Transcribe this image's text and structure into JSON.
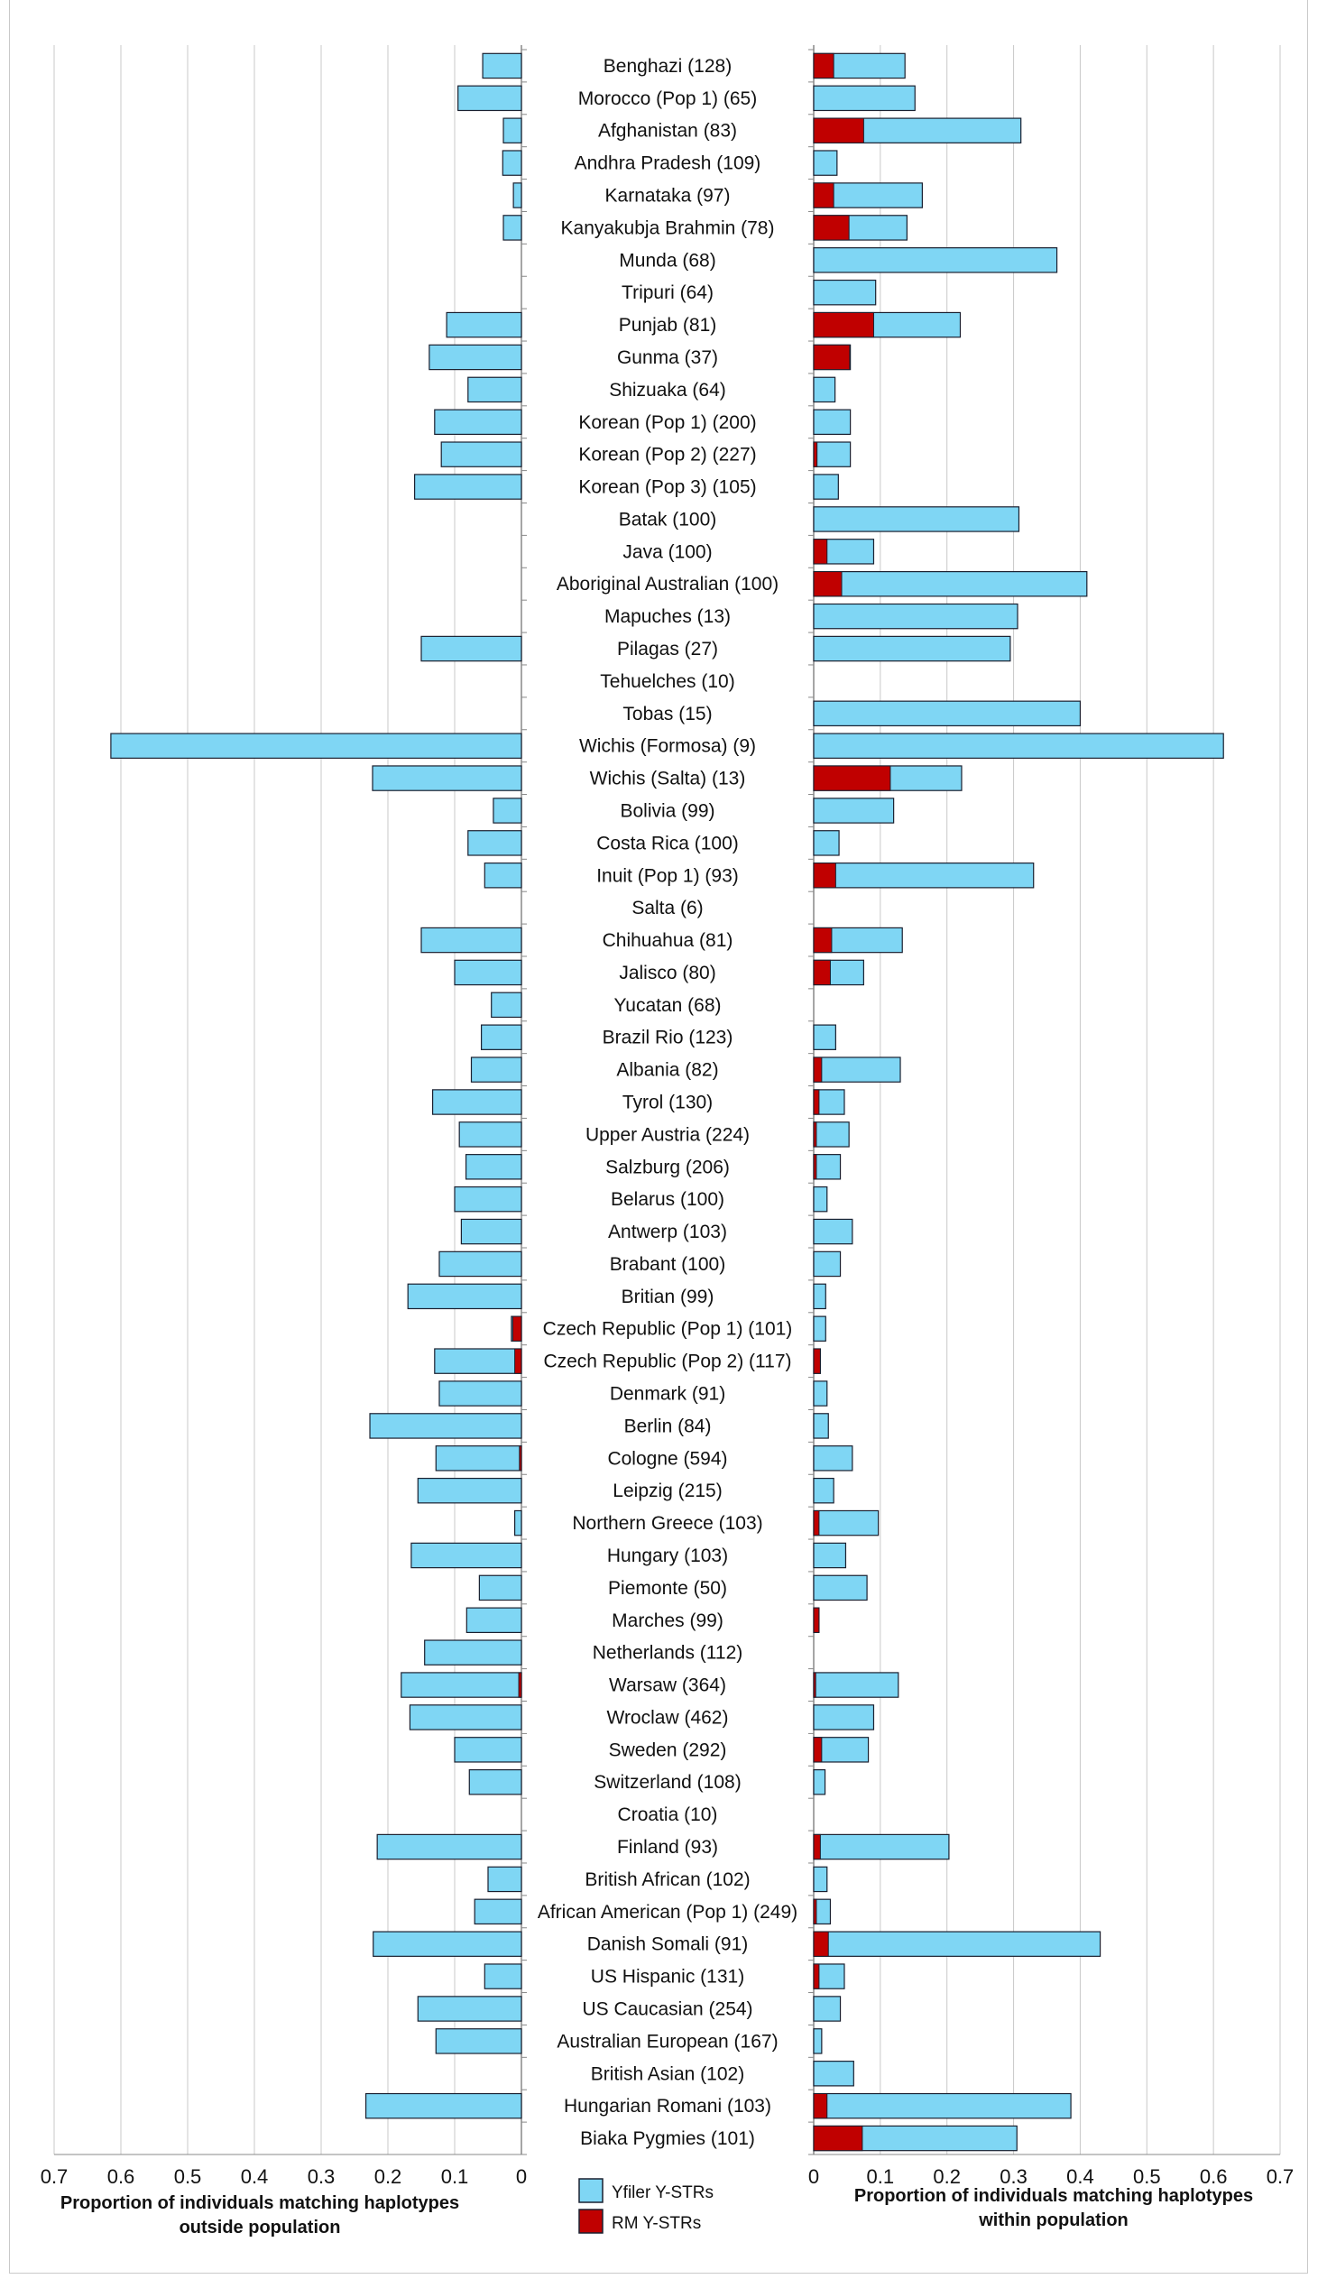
{
  "chart_data": {
    "type": "bar",
    "orientation": "horizontal",
    "layout": "back-to-back",
    "categories": [
      "Benghazi (128)",
      "Morocco (Pop 1) (65)",
      "Afghanistan (83)",
      "Andhra Pradesh (109)",
      "Karnataka (97)",
      "Kanyakubja Brahmin (78)",
      "Munda (68)",
      "Tripuri (64)",
      "Punjab (81)",
      "Gunma (37)",
      "Shizuaka (64)",
      "Korean (Pop 1) (200)",
      "Korean (Pop 2) (227)",
      "Korean (Pop 3) (105)",
      "Batak (100)",
      "Java (100)",
      "Aboriginal Australian (100)",
      "Mapuches (13)",
      "Pilagas (27)",
      "Tehuelches (10)",
      "Tobas (15)",
      "Wichis (Formosa) (9)",
      "Wichis (Salta) (13)",
      "Bolivia (99)",
      "Costa Rica (100)",
      "Inuit (Pop 1) (93)",
      "Salta (6)",
      "Chihuahua (81)",
      "Jalisco (80)",
      "Yucatan (68)",
      "Brazil Rio (123)",
      "Albania (82)",
      "Tyrol (130)",
      "Upper Austria (224)",
      "Salzburg (206)",
      "Belarus (100)",
      "Antwerp (103)",
      "Brabant (100)",
      "Britian (99)",
      "Czech Republic (Pop 1) (101)",
      "Czech Republic (Pop 2) (117)",
      "Denmark (91)",
      "Berlin (84)",
      "Cologne (594)",
      "Leipzig (215)",
      "Northern Greece (103)",
      "Hungary (103)",
      "Piemonte (50)",
      "Marches (99)",
      "Netherlands (112)",
      "Warsaw (364)",
      "Wroclaw (462)",
      "Sweden (292)",
      "Switzerland (108)",
      "Croatia (10)",
      "Finland (93)",
      "British African (102)",
      "African American (Pop 1) (249)",
      "Danish Somali (91)",
      "US Hispanic (131)",
      "US Caucasian (254)",
      "Australian European (167)",
      "British Asian (102)",
      "Hungarian Romani (103)",
      "Biaka Pygmies (101)"
    ],
    "panels": [
      {
        "side": "left",
        "xlabel": "Proportion of individuals matching haplotypes outside population",
        "xlim": [
          0,
          0.7
        ],
        "reversed": true,
        "series": [
          {
            "name": "Yfiler Y-STRs",
            "values": [
              0.058,
              0.095,
              0.027,
              0.028,
              0.012,
              0.027,
              0,
              0,
              0.112,
              0.138,
              0.08,
              0.13,
              0.12,
              0.16,
              0,
              0,
              0,
              0,
              0.15,
              0,
              0,
              0.615,
              0.223,
              0.042,
              0.08,
              0.055,
              0,
              0.15,
              0.1,
              0.045,
              0.06,
              0.075,
              0.133,
              0.093,
              0.083,
              0.1,
              0.09,
              0.123,
              0.17,
              0.015,
              0.13,
              0.123,
              0.227,
              0.128,
              0.155,
              0.01,
              0.165,
              0.063,
              0.082,
              0.145,
              0.18,
              0.167,
              0.1,
              0.078,
              0,
              0.216,
              0.05,
              0.07,
              0.222,
              0.055,
              0.155,
              0.128,
              0,
              0.233,
              0
            ]
          },
          {
            "name": "RM Y-STRs",
            "values": [
              0,
              0,
              0,
              0,
              0,
              0,
              0,
              0,
              0,
              0,
              0,
              0,
              0,
              0,
              0,
              0,
              0,
              0,
              0,
              0,
              0,
              0,
              0,
              0,
              0,
              0,
              0,
              0,
              0,
              0,
              0,
              0,
              0,
              0,
              0,
              0,
              0,
              0,
              0,
              0.013,
              0.01,
              0,
              0,
              0.003,
              0,
              0,
              0,
              0,
              0,
              0,
              0.004,
              0,
              0,
              0,
              0,
              0,
              0,
              0,
              0,
              0,
              0,
              0,
              0,
              0,
              0
            ]
          }
        ]
      },
      {
        "side": "right",
        "xlabel": "Proportion of individuals matching haplotypes within population",
        "xlim": [
          0,
          0.7
        ],
        "reversed": false,
        "series": [
          {
            "name": "Yfiler Y-STRs",
            "values": [
              0.137,
              0.152,
              0.311,
              0.035,
              0.163,
              0.14,
              0.365,
              0.093,
              0.22,
              0.055,
              0.032,
              0.055,
              0.055,
              0.037,
              0.308,
              0.09,
              0.41,
              0.306,
              0.295,
              0,
              0.4,
              0.615,
              0.222,
              0.12,
              0.038,
              0.33,
              0,
              0.133,
              0.075,
              0,
              0.033,
              0.13,
              0.046,
              0.053,
              0.04,
              0.02,
              0.058,
              0.04,
              0.018,
              0.018,
              0.01,
              0.02,
              0.022,
              0.058,
              0.03,
              0.097,
              0.048,
              0.08,
              0.008,
              0,
              0.127,
              0.09,
              0.082,
              0.017,
              0,
              0.203,
              0.02,
              0.025,
              0.43,
              0.046,
              0.04,
              0.012,
              0.06,
              0.386,
              0.305
            ]
          },
          {
            "name": "RM Y-STRs",
            "values": [
              0.03,
              0,
              0.075,
              0,
              0.03,
              0.053,
              0,
              0,
              0.09,
              0.054,
              0,
              0,
              0.005,
              0,
              0,
              0.02,
              0.042,
              0,
              0,
              0,
              0,
              0,
              0.115,
              0,
              0,
              0.033,
              0,
              0.027,
              0.025,
              0,
              0,
              0.012,
              0.008,
              0.004,
              0.004,
              0,
              0,
              0,
              0,
              0,
              0.01,
              0,
              0,
              0,
              0,
              0.008,
              0,
              0,
              0.008,
              0,
              0.003,
              0,
              0.012,
              0,
              0,
              0.01,
              0,
              0.004,
              0.022,
              0.008,
              0,
              0,
              0,
              0.02,
              0.073
            ]
          }
        ]
      }
    ],
    "xticks": [
      "0.7",
      "0.6",
      "0.5",
      "0.4",
      "0.3",
      "0.2",
      "0.1",
      "0",
      "0",
      "0.1",
      "0.2",
      "0.3",
      "0.4",
      "0.5",
      "0.6",
      "0.7"
    ],
    "grid": true,
    "legend": {
      "position": "bottom-center",
      "items": [
        {
          "label": "Yfiler Y-STRs",
          "color": "#7fd6f4"
        },
        {
          "label": "RM Y-STRs",
          "color": "#c00000"
        }
      ]
    }
  },
  "colors": {
    "yfiler": "#7fd6f4",
    "rm": "#c00000",
    "edge": "#1a2030",
    "grid": "#c8c8c8"
  }
}
